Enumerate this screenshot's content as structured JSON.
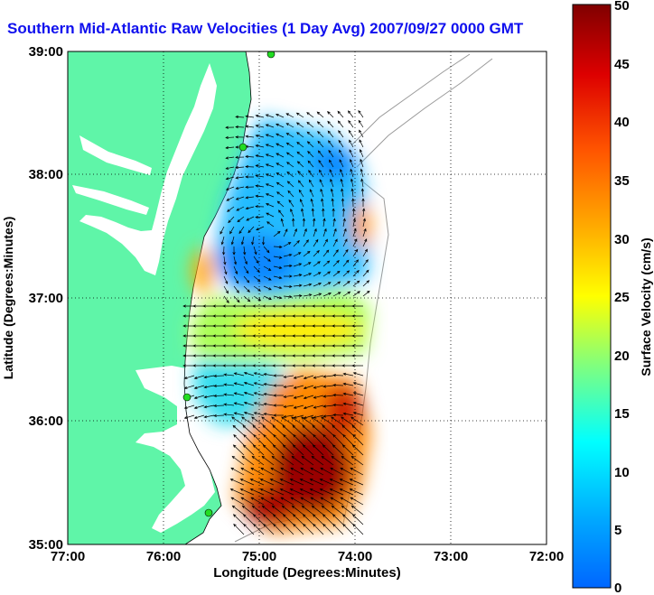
{
  "title": "Southern Mid-Atlantic Raw Velocities (1 Day Avg) 2007/09/27 0000 GMT",
  "x_axis": {
    "label": "Longitude (Degrees:Minutes)",
    "ticks": [
      "77:00",
      "76:00",
      "75:00",
      "74:00",
      "73:00",
      "72:00"
    ]
  },
  "y_axis": {
    "label": "Latitude (Degrees:Minutes)",
    "ticks": [
      "39:00",
      "38:00",
      "37:00",
      "36:00",
      "35:00"
    ]
  },
  "colorbar": {
    "label": "Surface Velocity (cm/s)",
    "ticks": [
      "50",
      "45",
      "40",
      "35",
      "30",
      "25",
      "20",
      "15",
      "10",
      "5",
      "0"
    ],
    "min": 0,
    "max": 50
  },
  "colors": {
    "land": "#5ff5a8",
    "title": "#1010ee",
    "station": "#22dd22"
  }
}
